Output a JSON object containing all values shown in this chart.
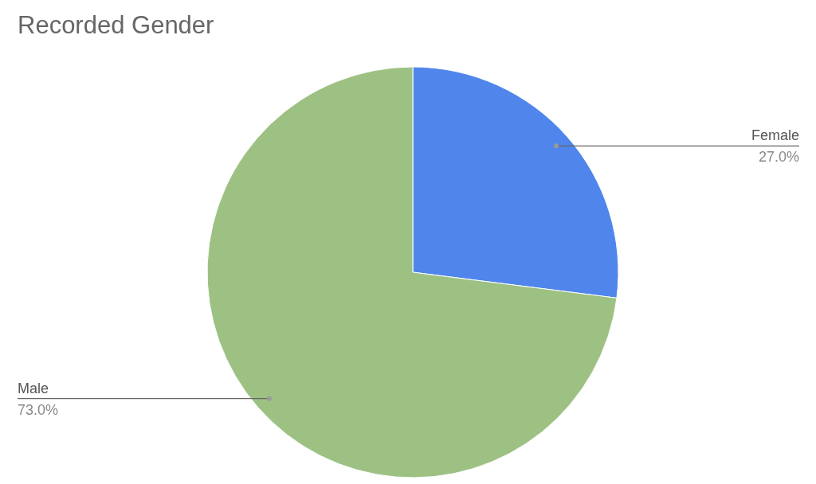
{
  "chart_data": {
    "type": "pie",
    "title": "Recorded Gender",
    "categories": [
      "Female",
      "Male"
    ],
    "values": [
      27.0,
      73.0
    ],
    "colors": [
      "#5086ec",
      "#9dc183"
    ],
    "value_labels": [
      "27.0%",
      "73.0%"
    ]
  }
}
